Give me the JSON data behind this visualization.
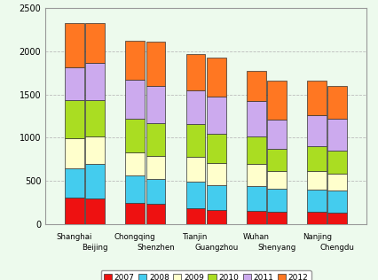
{
  "cities_pair1": [
    "Shanghai",
    "Beijing"
  ],
  "cities_pair2": [
    "Chongqing",
    "Shenzhen"
  ],
  "cities_pair3": [
    "Tianjin",
    "Guangzhou"
  ],
  "cities_pair4": [
    "Wuhan",
    "Shenyang"
  ],
  "cities_pair5": [
    "Nanjing",
    "Chengdu"
  ],
  "years": [
    "2007",
    "2008",
    "2009",
    "2010",
    "2011",
    "2012"
  ],
  "colors": [
    "#EE1111",
    "#44CCEE",
    "#FFFFCC",
    "#AADD22",
    "#CCAAEE",
    "#FF7722"
  ],
  "values": {
    "Shanghai": [
      310,
      340,
      340,
      450,
      380,
      510
    ],
    "Beijing": [
      300,
      400,
      320,
      420,
      430,
      460
    ],
    "Chongqing": [
      240,
      320,
      270,
      390,
      450,
      450
    ],
    "Shenzhen": [
      235,
      290,
      260,
      380,
      440,
      510
    ],
    "Tianjin": [
      185,
      310,
      280,
      380,
      390,
      430
    ],
    "Guangzhou": [
      165,
      285,
      260,
      340,
      430,
      450
    ],
    "Wuhan": [
      155,
      285,
      260,
      310,
      420,
      350
    ],
    "Shenyang": [
      145,
      265,
      200,
      260,
      340,
      450
    ],
    "Nanjing": [
      140,
      260,
      210,
      290,
      360,
      400
    ],
    "Chengdu": [
      130,
      255,
      200,
      270,
      370,
      380
    ]
  },
  "ylim": [
    0,
    2500
  ],
  "yticks": [
    0,
    500,
    1000,
    1500,
    2000,
    2500
  ],
  "bar_width": 0.32,
  "background_color": "#EDFAED",
  "grid_color": "#BBBBBB",
  "border_color": "#999999",
  "figsize": [
    4.26,
    3.16
  ],
  "dpi": 100
}
